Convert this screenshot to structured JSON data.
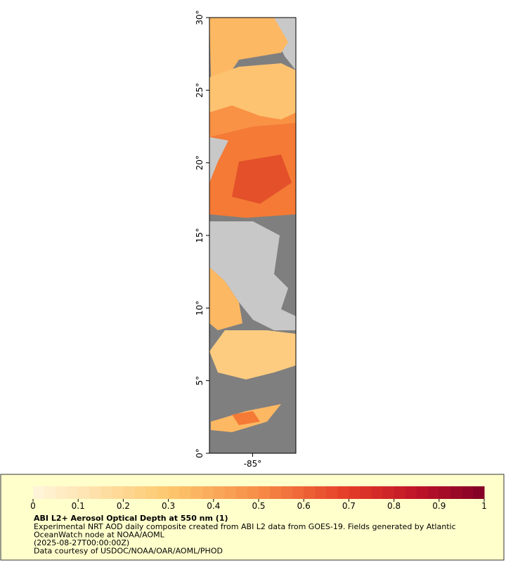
{
  "map": {
    "ylim": [
      0,
      30
    ],
    "yticks": [
      {
        "value": 0,
        "label": "0°"
      },
      {
        "value": 5,
        "label": "5°"
      },
      {
        "value": 10,
        "label": "10°"
      },
      {
        "value": 15,
        "label": "15°"
      },
      {
        "value": 20,
        "label": "20°"
      },
      {
        "value": 25,
        "label": "25°"
      },
      {
        "value": 30,
        "label": "30°"
      }
    ],
    "xlim": [
      -88,
      -82
    ],
    "xticks": [
      {
        "value": -85,
        "label": "-85°"
      }
    ]
  },
  "colorbar": {
    "clim": [
      0,
      1
    ],
    "ticks": [
      0,
      0.1,
      0.2,
      0.3,
      0.4,
      0.5,
      0.6,
      0.7,
      0.8,
      0.9,
      1
    ]
  },
  "caption": {
    "title": "ABI L2+ Aerosol Optical Depth at 550 nm (1)",
    "lines": [
      "Experimental NRT AOD daily composite created from ABI L2 data from GOES-19. Fields generated by Atlantic",
      "OceanWatch node at NOAA/AOML",
      "(2025-08-27T00:00:00Z)",
      "Data courtesy of USDOC/NOAA/OAR/AOML/PHOD"
    ]
  }
}
